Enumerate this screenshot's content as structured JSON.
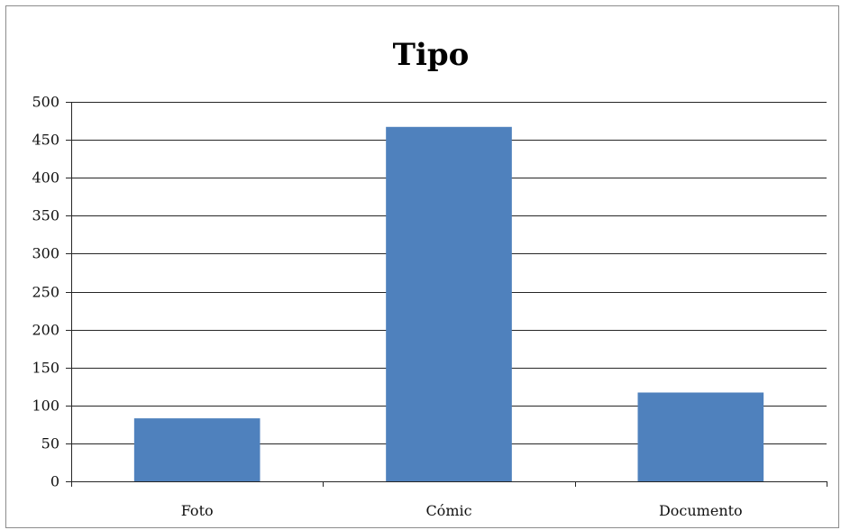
{
  "chart_data": {
    "type": "bar",
    "title": "Tipo",
    "categories": [
      "Foto",
      "Cómic",
      "Documento"
    ],
    "values": [
      83,
      467,
      117
    ],
    "xlabel": "",
    "ylabel": "",
    "ylim": [
      0,
      500
    ],
    "yticks": [
      0,
      50,
      100,
      150,
      200,
      250,
      300,
      350,
      400,
      450,
      500
    ],
    "grid": true,
    "legend": "none",
    "bar_color": "#4f81bd",
    "gridline_color": "#262626"
  }
}
